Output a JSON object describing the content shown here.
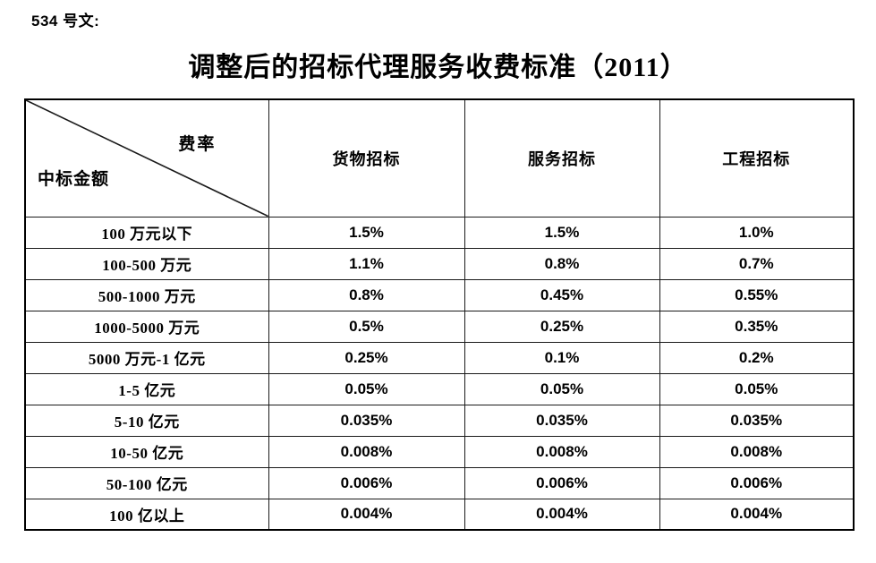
{
  "page": {
    "doc_label": "534 号文:",
    "title": "调整后的招标代理服务收费标准（2011）",
    "background_color": "#ffffff",
    "text_color": "#000000",
    "border_color": "#000000"
  },
  "table": {
    "corner": {
      "top_right": "费率",
      "bottom_left": "中标金额"
    },
    "columns": [
      "货物招标",
      "服务招标",
      "工程招标"
    ],
    "rows": [
      {
        "label": "100 万元以下",
        "values": [
          "1.5%",
          "1.5%",
          "1.0%"
        ]
      },
      {
        "label": "100-500 万元",
        "values": [
          "1.1%",
          "0.8%",
          "0.7%"
        ]
      },
      {
        "label": "500-1000 万元",
        "values": [
          "0.8%",
          "0.45%",
          "0.55%"
        ]
      },
      {
        "label": "1000-5000 万元",
        "values": [
          "0.5%",
          "0.25%",
          "0.35%"
        ]
      },
      {
        "label": "5000 万元-1 亿元",
        "values": [
          "0.25%",
          "0.1%",
          "0.2%"
        ]
      },
      {
        "label": "1-5 亿元",
        "values": [
          "0.05%",
          "0.05%",
          "0.05%"
        ]
      },
      {
        "label": "5-10 亿元",
        "values": [
          "0.035%",
          "0.035%",
          "0.035%"
        ]
      },
      {
        "label": "10-50 亿元",
        "values": [
          "0.008%",
          "0.008%",
          "0.008%"
        ]
      },
      {
        "label": "50-100 亿元",
        "values": [
          "0.006%",
          "0.006%",
          "0.006%"
        ]
      },
      {
        "label": "100 亿以上",
        "values": [
          "0.004%",
          "0.004%",
          "0.004%"
        ]
      }
    ]
  }
}
